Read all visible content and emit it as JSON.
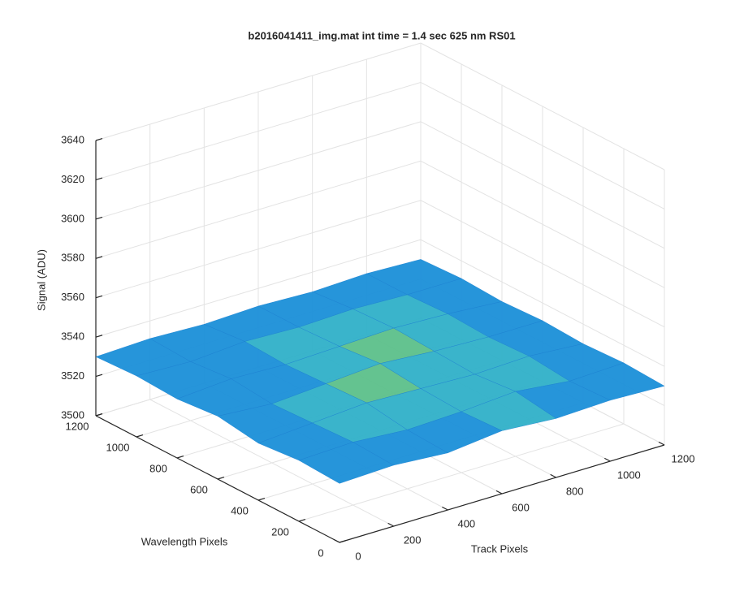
{
  "chart_data": {
    "type": "surface",
    "title": "b2016041411_img.mat int time = 1.4 sec  625 nm RS01",
    "x_label": "Track Pixels",
    "y_label": "Wavelength Pixels",
    "z_label": "Signal (ADU)",
    "x": [
      0,
      200,
      400,
      600,
      800,
      1000,
      1200
    ],
    "y": [
      0,
      200,
      400,
      600,
      800,
      1000,
      1200
    ],
    "z": [
      [
        3530,
        3531,
        3529,
        3532,
        3530,
        3531,
        3530
      ],
      [
        3531,
        3532,
        3530,
        3531,
        3533,
        3530,
        3531
      ],
      [
        3529,
        3531,
        3533,
        3532,
        3531,
        3532,
        3530
      ],
      [
        3532,
        3530,
        3532,
        3534,
        3532,
        3531,
        3531
      ],
      [
        3530,
        3532,
        3531,
        3532,
        3533,
        3532,
        3530
      ],
      [
        3531,
        3530,
        3532,
        3531,
        3532,
        3531,
        3531
      ],
      [
        3530,
        3531,
        3530,
        3531,
        3530,
        3531,
        3530
      ]
    ],
    "xlim": [
      0,
      1200
    ],
    "ylim": [
      0,
      1200
    ],
    "zlim": [
      3500,
      3640
    ],
    "xticks": [
      0,
      200,
      400,
      600,
      800,
      1000,
      1200
    ],
    "yticks": [
      0,
      200,
      400,
      600,
      800,
      1000,
      1200
    ],
    "zticks": [
      3500,
      3520,
      3540,
      3560,
      3580,
      3600,
      3620,
      3640
    ],
    "grid": true,
    "colormap": [
      "#0a5ad0",
      "#1a8fd8",
      "#2fb0c8",
      "#5cc08a"
    ]
  }
}
